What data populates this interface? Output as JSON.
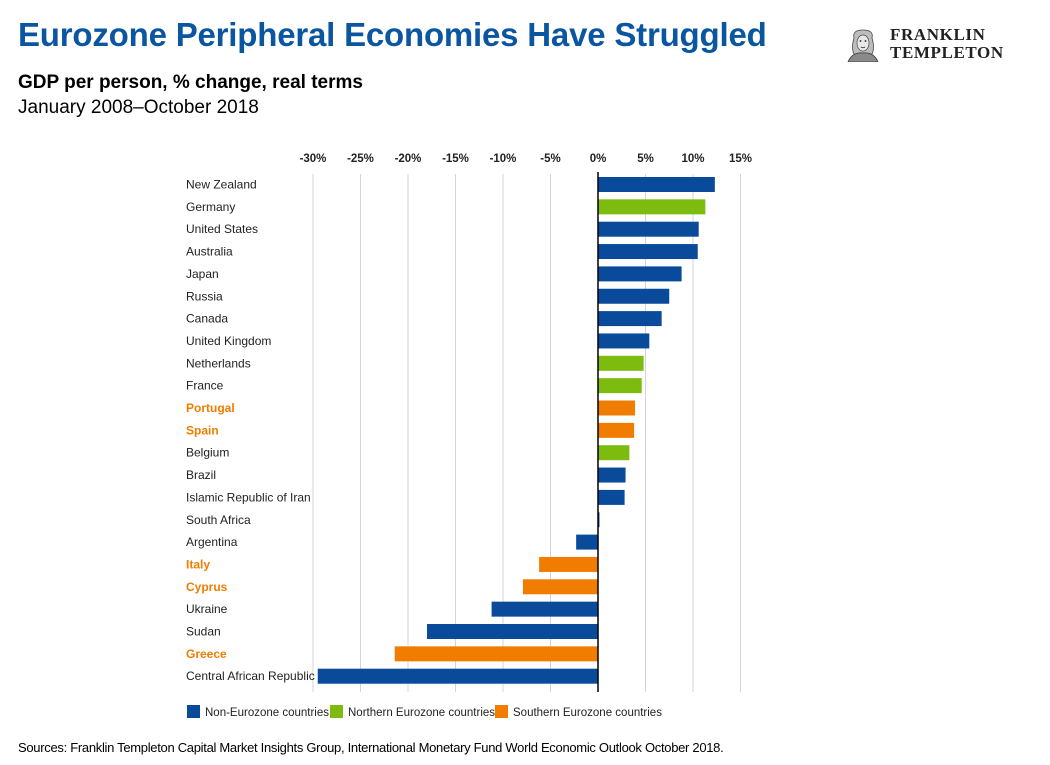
{
  "header": {
    "title": "Eurozone Peripheral Economies Have Struggled",
    "subtitle": "GDP per person, % change, real terms",
    "date_range": "January 2008–October 2018"
  },
  "logo": {
    "line1": "FRANKLIN",
    "line2": "TEMPLETON",
    "icon": "benjamin-franklin-portrait-icon"
  },
  "colors": {
    "non_eurozone": "#0a4a9a",
    "northern_eurozone": "#7dbb0f",
    "southern_eurozone": "#f07d00",
    "southern_label": "#f07d00",
    "default_label": "#222222"
  },
  "chart_data": {
    "type": "bar",
    "orientation": "horizontal",
    "xlim": [
      -30,
      15
    ],
    "xticks": [
      "-30%",
      "-25%",
      "-20%",
      "-15%",
      "-10%",
      "-5%",
      "0%",
      "5%",
      "10%",
      "15%"
    ],
    "xtick_values": [
      -30,
      -25,
      -20,
      -15,
      -10,
      -5,
      0,
      5,
      10,
      15
    ],
    "grid": true,
    "legend_position": "bottom-left",
    "legend": [
      {
        "key": "non",
        "label": "Non-Eurozone countries"
      },
      {
        "key": "north",
        "label": "Northern Eurozone countries"
      },
      {
        "key": "south",
        "label": "Southern Eurozone countries"
      }
    ],
    "categories": [
      "New Zealand",
      "Germany",
      "United States",
      "Australia",
      "Japan",
      "Russia",
      "Canada",
      "United Kingdom",
      "Netherlands",
      "France",
      "Portugal",
      "Spain",
      "Belgium",
      "Brazil",
      "Islamic Republic of Iran",
      "South Africa",
      "Argentina",
      "Italy",
      "Cyprus",
      "Ukraine",
      "Sudan",
      "Greece",
      "Central African Republic"
    ],
    "values": [
      12.3,
      11.3,
      10.6,
      10.5,
      8.8,
      7.5,
      6.7,
      5.4,
      4.8,
      4.6,
      3.9,
      3.8,
      3.3,
      2.9,
      2.8,
      0.1,
      -2.3,
      -6.2,
      -7.9,
      -11.2,
      -18.0,
      -21.4,
      -29.5
    ],
    "groups": [
      "non",
      "north",
      "non",
      "non",
      "non",
      "non",
      "non",
      "non",
      "north",
      "north",
      "south",
      "south",
      "north",
      "non",
      "non",
      "non",
      "non",
      "south",
      "south",
      "non",
      "non",
      "south",
      "non"
    ]
  },
  "footer": {
    "source": "Sources: Franklin Templeton Capital Market Insights Group, International Monetary Fund World Economic Outlook October 2018."
  }
}
